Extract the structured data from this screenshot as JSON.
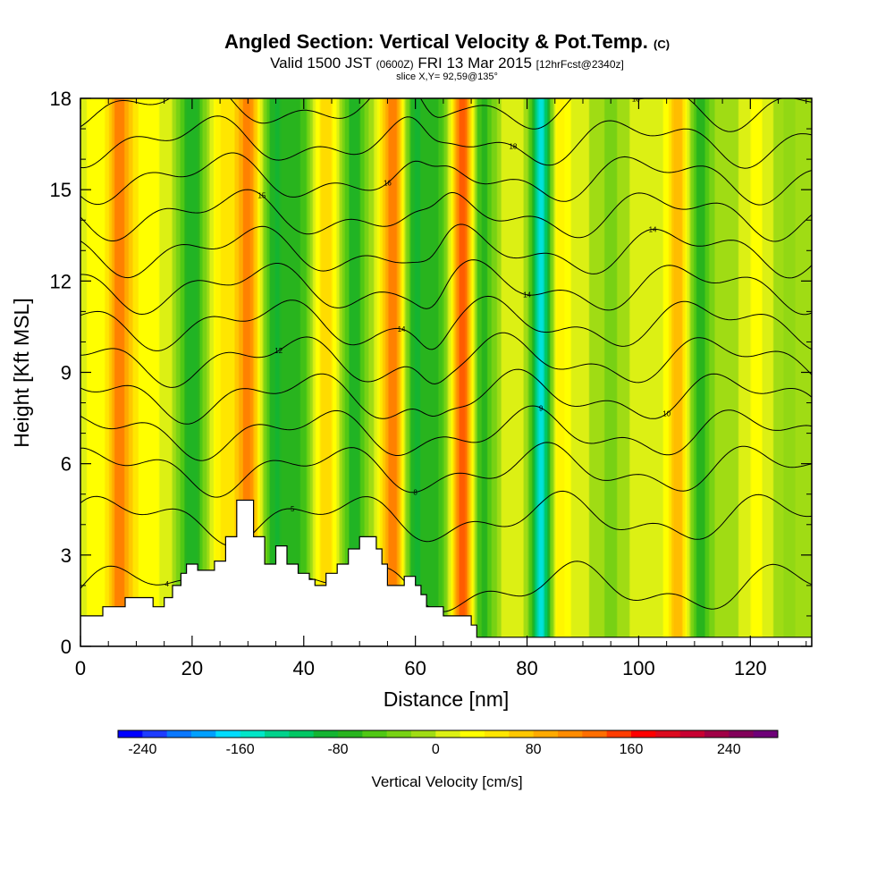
{
  "chart_data": {
    "type": "heatmap",
    "title_main": "Angled Section: Vertical Velocity & Pot.Temp.",
    "title_mark": "(C)",
    "subtitle_a": "Valid 1500 JST",
    "subtitle_b": "(0600Z)",
    "subtitle_c": "FRI 13 Mar 2015",
    "subtitle_d": "[12hrFcst@2340z]",
    "slice_text": "slice X,Y= 92,59@135°",
    "xlabel": "Distance [nm]",
    "ylabel": "Height [Kft MSL]",
    "xlim": [
      0,
      131
    ],
    "ylim": [
      0,
      18
    ],
    "x_ticks": [
      "0",
      "20",
      "40",
      "60",
      "80",
      "100",
      "120"
    ],
    "y_ticks": [
      "0",
      "3",
      "6",
      "9",
      "12",
      "15",
      "18"
    ],
    "colorbar": {
      "title": "Vertical Velocity [cm/s]",
      "tick_labels": [
        "-240",
        "-160",
        "-80",
        "0",
        "80",
        "160",
        "240"
      ],
      "tick_values": [
        -240,
        -160,
        -80,
        0,
        80,
        160,
        240
      ],
      "range": [
        -260,
        280
      ],
      "colors": [
        "#0000ff",
        "#1e3cff",
        "#0a78ff",
        "#00a0ff",
        "#00dcff",
        "#00e6c8",
        "#00d28c",
        "#00c864",
        "#14b432",
        "#28b41e",
        "#50c814",
        "#78d214",
        "#a0dc14",
        "#dcf014",
        "#ffff00",
        "#ffe600",
        "#ffc800",
        "#ffaa00",
        "#ff8c00",
        "#ff6e00",
        "#ff3c00",
        "#ff0000",
        "#dc0a1e",
        "#c80032",
        "#a00046",
        "#82005a",
        "#6e0078"
      ]
    },
    "contour_labels": [
      "18",
      "16",
      "15",
      "14",
      "12",
      "10",
      "9",
      "8",
      "5",
      "4"
    ],
    "velocity_bands": [
      {
        "x": 2,
        "w": 1.5,
        "v": 25
      },
      {
        "x": 7,
        "w": 2.5,
        "v": 110
      },
      {
        "x": 12,
        "w": 3,
        "v": 30
      },
      {
        "x": 16,
        "w": 1.5,
        "v": 15
      },
      {
        "x": 20,
        "w": 2.8,
        "v": -80
      },
      {
        "x": 25,
        "w": 2.5,
        "v": 40
      },
      {
        "x": 30,
        "w": 2.5,
        "v": 110
      },
      {
        "x": 35,
        "w": 2.8,
        "v": -80
      },
      {
        "x": 39.5,
        "w": 2.5,
        "v": -55
      },
      {
        "x": 44,
        "w": 2.5,
        "v": 60
      },
      {
        "x": 49,
        "w": 2.5,
        "v": -75
      },
      {
        "x": 53,
        "w": 1.5,
        "v": 0
      },
      {
        "x": 56,
        "w": 2.2,
        "v": 120
      },
      {
        "x": 60,
        "w": 2.2,
        "v": -85
      },
      {
        "x": 64,
        "w": 2.2,
        "v": -60
      },
      {
        "x": 68.5,
        "w": 2,
        "v": 145
      },
      {
        "x": 72,
        "w": 2.5,
        "v": -70
      },
      {
        "x": 77,
        "w": 2.5,
        "v": 15
      },
      {
        "x": 82.5,
        "w": 1.8,
        "v": -150
      },
      {
        "x": 86,
        "w": 2,
        "v": 40
      },
      {
        "x": 90,
        "w": 3,
        "v": 5
      },
      {
        "x": 95,
        "w": 3,
        "v": -25
      },
      {
        "x": 101,
        "w": 3,
        "v": 15
      },
      {
        "x": 107,
        "w": 2,
        "v": 80
      },
      {
        "x": 111,
        "w": 2,
        "v": -70
      },
      {
        "x": 116,
        "w": 3.5,
        "v": -10
      },
      {
        "x": 121,
        "w": 3,
        "v": 25
      },
      {
        "x": 127,
        "w": 3,
        "v": -20
      }
    ],
    "terrain": [
      [
        0,
        1
      ],
      [
        4,
        1
      ],
      [
        4,
        1.3
      ],
      [
        8,
        1.3
      ],
      [
        8,
        1.6
      ],
      [
        13,
        1.6
      ],
      [
        13,
        1.3
      ],
      [
        15,
        1.3
      ],
      [
        15,
        1.6
      ],
      [
        16.5,
        1.6
      ],
      [
        16.5,
        2
      ],
      [
        18,
        2
      ],
      [
        18,
        2.4
      ],
      [
        19,
        2.4
      ],
      [
        19,
        2.7
      ],
      [
        21,
        2.7
      ],
      [
        21,
        2.5
      ],
      [
        24,
        2.5
      ],
      [
        24,
        2.8
      ],
      [
        26,
        2.8
      ],
      [
        26,
        3.6
      ],
      [
        28,
        3.6
      ],
      [
        28,
        4.8
      ],
      [
        31,
        4.8
      ],
      [
        31,
        3.6
      ],
      [
        33,
        3.6
      ],
      [
        33,
        2.7
      ],
      [
        35,
        2.7
      ],
      [
        35,
        3.3
      ],
      [
        37,
        3.3
      ],
      [
        37,
        2.7
      ],
      [
        39,
        2.7
      ],
      [
        39,
        2.4
      ],
      [
        41,
        2.4
      ],
      [
        41,
        2.2
      ],
      [
        42,
        2.2
      ],
      [
        42,
        2
      ],
      [
        44,
        2
      ],
      [
        44,
        2.4
      ],
      [
        46,
        2.4
      ],
      [
        46,
        2.7
      ],
      [
        48,
        2.7
      ],
      [
        48,
        3.2
      ],
      [
        50,
        3.2
      ],
      [
        50,
        3.6
      ],
      [
        53,
        3.6
      ],
      [
        53,
        3.2
      ],
      [
        54,
        3.2
      ],
      [
        54,
        2.7
      ],
      [
        55,
        2.7
      ],
      [
        55,
        2
      ],
      [
        58,
        2
      ],
      [
        58,
        2.3
      ],
      [
        60,
        2.3
      ],
      [
        60,
        2
      ],
      [
        61,
        2
      ],
      [
        61,
        1.7
      ],
      [
        62,
        1.7
      ],
      [
        62,
        1.3
      ],
      [
        65,
        1.3
      ],
      [
        65,
        1
      ],
      [
        70,
        1
      ],
      [
        70,
        0.7
      ],
      [
        71,
        0.7
      ],
      [
        71,
        0.3
      ],
      [
        131,
        0.3
      ]
    ],
    "theta_contours": [
      {
        "base": 1.9,
        "label": "4"
      },
      {
        "base": 4.2,
        "label": "5"
      },
      {
        "base": 5.8,
        "label": "8"
      },
      {
        "base": 7.0,
        "label": "9"
      },
      {
        "base": 8.2,
        "label": "10"
      },
      {
        "base": 9.4,
        "label": "12"
      },
      {
        "base": 10.6,
        "label": "14"
      },
      {
        "base": 11.8,
        "label": "14"
      },
      {
        "base": 13.0,
        "label": "14"
      },
      {
        "base": 14.2,
        "label": "15"
      },
      {
        "base": 15.4,
        "label": "16"
      },
      {
        "base": 16.6,
        "label": "18"
      },
      {
        "base": 17.8,
        "label": "18"
      }
    ]
  }
}
